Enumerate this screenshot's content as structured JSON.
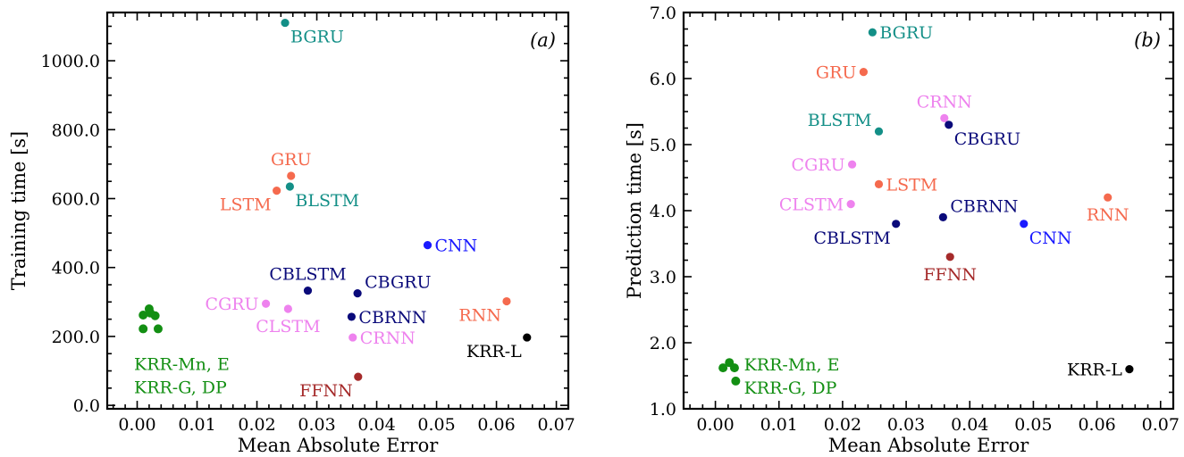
{
  "chart_data": [
    {
      "type": "scatter",
      "panel_label": "(a)",
      "xlabel": "Mean Absolute Error",
      "ylabel": "Training time [s]",
      "xlim": [
        -0.005,
        0.072
      ],
      "ylim": [
        -10,
        1140
      ],
      "xticks": [
        "0.00",
        "0.01",
        "0.02",
        "0.03",
        "0.04",
        "0.05",
        "0.06",
        "0.07"
      ],
      "yticks": [
        "0.0",
        "200.0",
        "400.0",
        "600.0",
        "800.0",
        "1000.0"
      ],
      "grid": false,
      "points": [
        {
          "label": "BGRU",
          "x": 0.0247,
          "y": 1110,
          "color": "#138f87",
          "label_pos": "below-right"
        },
        {
          "label": "GRU",
          "x": 0.0257,
          "y": 666,
          "color": "#f56a4e",
          "label_pos": "above"
        },
        {
          "label": "LSTM",
          "x": 0.0233,
          "y": 623,
          "color": "#f56a4e",
          "label_pos": "below-left"
        },
        {
          "label": "BLSTM",
          "x": 0.0255,
          "y": 635,
          "color": "#138f87",
          "label_pos": "below-right"
        },
        {
          "label": "CNN",
          "x": 0.0485,
          "y": 465,
          "color": "#1a1aff",
          "label_pos": "right"
        },
        {
          "label": "CBLSTM",
          "x": 0.0285,
          "y": 333,
          "color": "#0a0a7a",
          "label_pos": "above"
        },
        {
          "label": "CBGRU",
          "x": 0.0368,
          "y": 325,
          "color": "#0a0a7a",
          "label_pos": "above-right"
        },
        {
          "label": "CGRU",
          "x": 0.0215,
          "y": 295,
          "color": "#ee82ee",
          "label_pos": "left"
        },
        {
          "label": "CLSTM",
          "x": 0.0252,
          "y": 280,
          "color": "#ee82ee",
          "label_pos": "below"
        },
        {
          "label": "CBRNN",
          "x": 0.0358,
          "y": 257,
          "color": "#0a0a7a",
          "label_pos": "right"
        },
        {
          "label": "RNN",
          "x": 0.0617,
          "y": 302,
          "color": "#f56a4e",
          "label_pos": "below-left"
        },
        {
          "label": "CRNN",
          "x": 0.036,
          "y": 197,
          "color": "#ee82ee",
          "label_pos": "right"
        },
        {
          "label": "KRR-L",
          "x": 0.0651,
          "y": 197,
          "color": "#000000",
          "label_pos": "below-left"
        },
        {
          "label": "FFNN",
          "x": 0.0369,
          "y": 83,
          "color": "#a52a2a",
          "label_pos": "below-left"
        }
      ],
      "cluster": {
        "color": "#138f13",
        "labels": [
          "KRR-Mn, E",
          "KRR-G, DP"
        ],
        "points": [
          {
            "x": 0.002,
            "y": 280
          },
          {
            "x": 0.001,
            "y": 262
          },
          {
            "x": 0.003,
            "y": 260
          },
          {
            "x": 0.001,
            "y": 222
          },
          {
            "x": 0.0035,
            "y": 222
          },
          {
            "x": 0.0022,
            "y": 268
          }
        ]
      }
    },
    {
      "type": "scatter",
      "panel_label": "(b)",
      "xlabel": "Mean Absolute Error",
      "ylabel": "Prediction time [s]",
      "xlim": [
        -0.005,
        0.072
      ],
      "ylim": [
        1.0,
        7.0
      ],
      "xticks": [
        "0.00",
        "0.01",
        "0.02",
        "0.03",
        "0.04",
        "0.05",
        "0.06",
        "0.07"
      ],
      "yticks": [
        "1.0",
        "2.0",
        "3.0",
        "4.0",
        "5.0",
        "6.0",
        "7.0"
      ],
      "grid": false,
      "points": [
        {
          "label": "BGRU",
          "x": 0.0247,
          "y": 6.7,
          "color": "#138f87",
          "label_pos": "right"
        },
        {
          "label": "GRU",
          "x": 0.0233,
          "y": 6.1,
          "color": "#f56a4e",
          "label_pos": "left"
        },
        {
          "label": "CRNN",
          "x": 0.036,
          "y": 5.4,
          "color": "#ee82ee",
          "label_pos": "above"
        },
        {
          "label": "CBGRU",
          "x": 0.0367,
          "y": 5.3,
          "color": "#0a0a7a",
          "label_pos": "below-right"
        },
        {
          "label": "BLSTM",
          "x": 0.0257,
          "y": 5.2,
          "color": "#138f87",
          "label_pos": "above-left"
        },
        {
          "label": "CGRU",
          "x": 0.0215,
          "y": 4.7,
          "color": "#ee82ee",
          "label_pos": "left"
        },
        {
          "label": "LSTM",
          "x": 0.0257,
          "y": 4.4,
          "color": "#f56a4e",
          "label_pos": "right"
        },
        {
          "label": "CLSTM",
          "x": 0.0213,
          "y": 4.1,
          "color": "#ee82ee",
          "label_pos": "left"
        },
        {
          "label": "CBRNN",
          "x": 0.0358,
          "y": 3.9,
          "color": "#0a0a7a",
          "label_pos": "above-right"
        },
        {
          "label": "CBLSTM",
          "x": 0.0284,
          "y": 3.8,
          "color": "#0a0a7a",
          "label_pos": "below-left"
        },
        {
          "label": "CNN",
          "x": 0.0485,
          "y": 3.8,
          "color": "#1a1aff",
          "label_pos": "below-right"
        },
        {
          "label": "RNN",
          "x": 0.0617,
          "y": 4.2,
          "color": "#f56a4e",
          "label_pos": "below"
        },
        {
          "label": "FFNN",
          "x": 0.0369,
          "y": 3.3,
          "color": "#a52a2a",
          "label_pos": "below"
        },
        {
          "label": "KRR-L",
          "x": 0.0651,
          "y": 1.6,
          "color": "#000000",
          "label_pos": "left"
        }
      ],
      "cluster": {
        "color": "#138f13",
        "labels": [
          "KRR-Mn, E",
          "KRR-G, DP"
        ],
        "points": [
          {
            "x": 0.0022,
            "y": 1.7
          },
          {
            "x": 0.0012,
            "y": 1.62
          },
          {
            "x": 0.003,
            "y": 1.62
          },
          {
            "x": 0.0032,
            "y": 1.42
          }
        ]
      }
    }
  ]
}
